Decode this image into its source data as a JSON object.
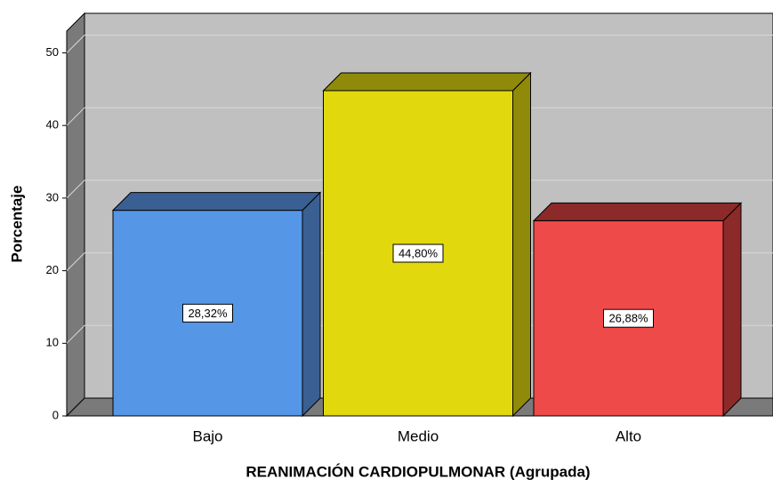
{
  "chart_data": {
    "type": "bar3d",
    "xlabel": "REANIMACIÓN CARDIOPULMONAR (Agrupada)",
    "ylabel": "Porcentaje",
    "categories": [
      "Bajo",
      "Medio",
      "Alto"
    ],
    "values": [
      28.32,
      44.8,
      26.88
    ],
    "value_labels": [
      "28,32%",
      "44,80%",
      "26,88%"
    ],
    "colors": [
      "#5596e6",
      "#e2d80e",
      "#ef4a4a"
    ],
    "side_colors": [
      "#3a5f92",
      "#8f8a0a",
      "#8c2a2a"
    ],
    "ylim": [
      0,
      53
    ],
    "yticks": [
      0,
      10,
      20,
      30,
      40,
      50
    ],
    "grid": true
  }
}
